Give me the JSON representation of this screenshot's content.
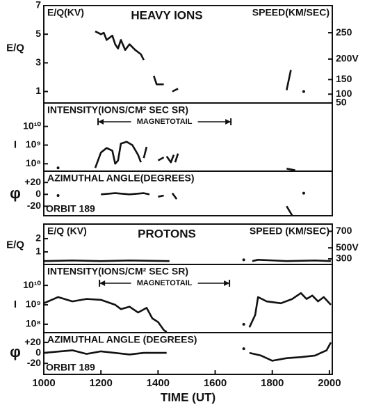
{
  "chart_data": [
    {
      "type": "line",
      "label": "E/Q(KV)",
      "title": "HEAVY IONS",
      "y2label": "SPEED(KM/SEC)",
      "ylabel": "E/Q",
      "xlim": [
        1000,
        2010
      ],
      "ylim": [
        0.2,
        7
      ],
      "yticks": [
        1,
        3,
        5,
        7
      ],
      "y2lim": [
        49.5,
        292.8
      ],
      "y2scale": "square",
      "y2ticks": [
        250,
        {
          "value": 200,
          "label": "200V"
        },
        150,
        100,
        50
      ],
      "x": [
        1180,
        1200,
        1210,
        1220,
        1240,
        1250,
        1260,
        1270,
        1285,
        1300,
        1320,
        1340,
        1350,
        null,
        1385,
        1395,
        1420,
        null,
        1450,
        1470,
        null,
        1850,
        1865,
        null,
        1910
      ],
      "values": [
        5.2,
        5.0,
        5.1,
        4.6,
        4.9,
        4.3,
        4.0,
        4.6,
        3.9,
        4.3,
        3.9,
        3.6,
        3.2,
        null,
        2.1,
        1.5,
        1.5,
        null,
        1.0,
        1.2,
        null,
        1.1,
        2.5,
        null,
        1.0
      ]
    },
    {
      "type": "line",
      "label": "INTENSITY(IONS/CM² SEC SR)",
      "ylabel": "I",
      "yscale": "log",
      "xlim": [
        1000,
        2010
      ],
      "ylim": [
        40000000,
        180000000000
      ],
      "yticks": [
        {
          "value": 10000000000,
          "label": "10¹⁰"
        },
        {
          "value": 1000000000,
          "label": "10⁹"
        },
        {
          "value": 100000000,
          "label": "10⁸"
        }
      ],
      "annotation": {
        "label": "MAGNETOTAIL",
        "x": [
          1190,
          1655
        ]
      },
      "x": [
        1050,
        null,
        1180,
        1200,
        1220,
        1240,
        1250,
        1260,
        1270,
        1290,
        1310,
        1330,
        1340,
        null,
        1350,
        1360,
        null,
        1400,
        1420,
        null,
        1430,
        1445,
        1455,
        null,
        1460,
        1470,
        null,
        1850,
        1880
      ],
      "values": [
        60000000,
        null,
        60000000,
        400000000,
        700000000,
        500000000,
        100000000,
        150000000,
        1200000000,
        1500000000,
        1000000000,
        300000000,
        120000000,
        null,
        200000000,
        800000000,
        null,
        150000000,
        220000000,
        null,
        250000000,
        120000000,
        300000000,
        null,
        120000000,
        350000000,
        null,
        55000000,
        45000000
      ]
    },
    {
      "type": "line",
      "label": "AZIMUTHAL ANGLE(DEGREES)",
      "ylabel": "φ",
      "annotation": "ORBIT 189",
      "xlim": [
        1000,
        2010
      ],
      "ylim": [
        -36,
        39
      ],
      "yticks": [
        {
          "value": 20,
          "label": "+20"
        },
        0,
        -20
      ],
      "x": [
        1050,
        null,
        1200,
        1250,
        1300,
        1350,
        1370,
        null,
        1400,
        1420,
        null,
        1450,
        1465,
        null,
        1850,
        1870,
        null,
        1910
      ],
      "values": [
        -2,
        null,
        0,
        2,
        0,
        2,
        0,
        null,
        -4,
        -2,
        null,
        2,
        -8,
        null,
        -20,
        -36,
        null,
        2
      ]
    },
    {
      "type": "line",
      "label": "E/Q (KV)",
      "title": "PROTONS",
      "y2label": "SPEED (KM/SEC)",
      "ylabel": "E/Q",
      "xlim": [
        1000,
        2010
      ],
      "ylim": [
        0.05,
        3.1
      ],
      "yticks": [
        2,
        1
      ],
      "y2lim": [
        98,
        771
      ],
      "y2scale": "square",
      "y2ticks": [
        700,
        {
          "value": 500,
          "label": "500V"
        },
        300
      ],
      "x": [
        1000,
        1100,
        1200,
        1300,
        1440,
        null,
        1700,
        null,
        1730,
        1750,
        1850,
        1950,
        2005
      ],
      "values": [
        0.3,
        0.35,
        0.3,
        0.35,
        0.3,
        null,
        0.4,
        null,
        0.3,
        0.4,
        0.3,
        0.35,
        0.3
      ]
    },
    {
      "type": "line",
      "label": "INTENSITY(IONS/CM² SEC SR)",
      "ylabel": "I",
      "yscale": "log",
      "xlim": [
        1000,
        2010
      ],
      "ylim": [
        37000000,
        120000000000
      ],
      "yticks": [
        {
          "value": 10000000000,
          "label": "10¹⁰"
        },
        {
          "value": 1000000000,
          "label": "10⁹"
        },
        {
          "value": 100000000,
          "label": "10⁸"
        }
      ],
      "annotation": {
        "label": "MAGNETOTAIL",
        "x": [
          1195,
          1650
        ]
      },
      "x": [
        1000,
        1050,
        1100,
        1150,
        1200,
        1250,
        1270,
        1300,
        1330,
        1360,
        1380,
        1400,
        1420,
        1430,
        null,
        1700,
        null,
        1720,
        1740,
        1750,
        1780,
        1830,
        1870,
        1900,
        1920,
        1940,
        1960,
        1980,
        2005
      ],
      "values": [
        1200000000,
        2500000000,
        1500000000,
        2000000000,
        1800000000,
        1000000000,
        600000000,
        800000000,
        400000000,
        700000000,
        200000000,
        130000000,
        50000000,
        40000000,
        null,
        100000000,
        null,
        70000000,
        300000000,
        2500000000,
        1500000000,
        1200000000,
        2000000000,
        4000000000,
        2000000000,
        3000000000,
        1500000000,
        2500000000,
        1000000000
      ]
    },
    {
      "type": "line",
      "label": "AZIMUTHAL ANGLE (DEGREES)",
      "ylabel": "φ",
      "annotation": "ORBIT 189",
      "xlim": [
        1000,
        2010
      ],
      "ylim": [
        -41,
        38.7
      ],
      "yticks": [
        {
          "value": 20,
          "label": "+20"
        },
        0,
        -20
      ],
      "xticks": [
        1000,
        1200,
        1400,
        1600,
        1800,
        2000
      ],
      "xlabel": "TIME (UT)",
      "x": [
        1000,
        1100,
        1150,
        1200,
        1300,
        1350,
        1430,
        null,
        1700,
        null,
        1720,
        1760,
        1800,
        1850,
        1900,
        1950,
        1970,
        1990,
        2005
      ],
      "values": [
        0,
        5,
        -2,
        3,
        -3,
        0,
        0,
        null,
        8,
        null,
        0,
        -5,
        -15,
        -10,
        -8,
        -5,
        0,
        5,
        20
      ]
    }
  ]
}
